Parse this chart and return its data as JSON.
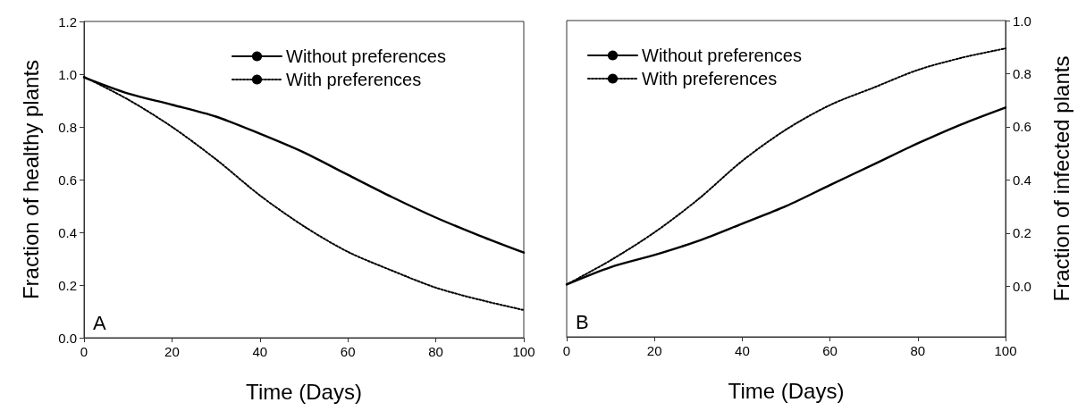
{
  "chart_data": [
    {
      "type": "line",
      "xlabel": "Time (Days)",
      "ylabel": "Fraction of healthy plants",
      "annotations": [
        "A"
      ],
      "x": [
        0,
        10,
        20,
        30,
        40,
        50,
        60,
        70,
        80,
        90,
        100
      ],
      "series": [
        {
          "name": "Without preferences",
          "color": "#000000",
          "line_style": "solid",
          "values": [
            0.988,
            0.927,
            0.884,
            0.839,
            0.774,
            0.703,
            0.618,
            0.534,
            0.456,
            0.387,
            0.323
          ]
        },
        {
          "name": "With preferences",
          "color": "#000000",
          "line_style": "dotted",
          "values": [
            0.99,
            0.904,
            0.8,
            0.677,
            0.54,
            0.423,
            0.326,
            0.255,
            0.19,
            0.144,
            0.105
          ]
        }
      ],
      "xlim": [
        0,
        100
      ],
      "xticks": [
        0,
        20,
        40,
        60,
        80,
        100
      ],
      "ylim": [
        0,
        1.2
      ],
      "yticks": [
        {
          "value": 0,
          "label": "0.0"
        },
        0.2,
        0.4,
        0.6,
        0.8,
        {
          "value": 1,
          "label": "1.0"
        },
        1.2
      ],
      "grid": false,
      "legend": "top right",
      "marker": "none"
    },
    {
      "type": "line",
      "xlabel": "Time (Days)",
      "y2label": "Fraction of infected plants",
      "annotations": [
        "B"
      ],
      "x": [
        0,
        10,
        20,
        30,
        40,
        50,
        60,
        70,
        80,
        90,
        100
      ],
      "series": [
        {
          "name": "Without preferences",
          "color": "#000000",
          "line_style": "solid",
          "axis": "y2",
          "values": [
            0.007,
            0.072,
            0.118,
            0.171,
            0.236,
            0.302,
            0.381,
            0.459,
            0.538,
            0.61,
            0.673
          ]
        },
        {
          "name": "With preferences",
          "color": "#000000",
          "line_style": "dotted",
          "axis": "y2",
          "values": [
            0.007,
            0.098,
            0.203,
            0.328,
            0.472,
            0.59,
            0.682,
            0.748,
            0.814,
            0.86,
            0.895
          ]
        }
      ],
      "xlim": [
        0,
        100
      ],
      "xticks": [
        0,
        20,
        40,
        60,
        80,
        100
      ],
      "y2lim": [
        -0.19,
        1
      ],
      "y2ticks": [
        {
          "value": 0,
          "label": "0.0"
        },
        0.2,
        0.4,
        0.6,
        0.8,
        {
          "value": 1,
          "label": "1.0"
        }
      ],
      "grid": false,
      "legend": "top left",
      "marker": "none"
    }
  ]
}
